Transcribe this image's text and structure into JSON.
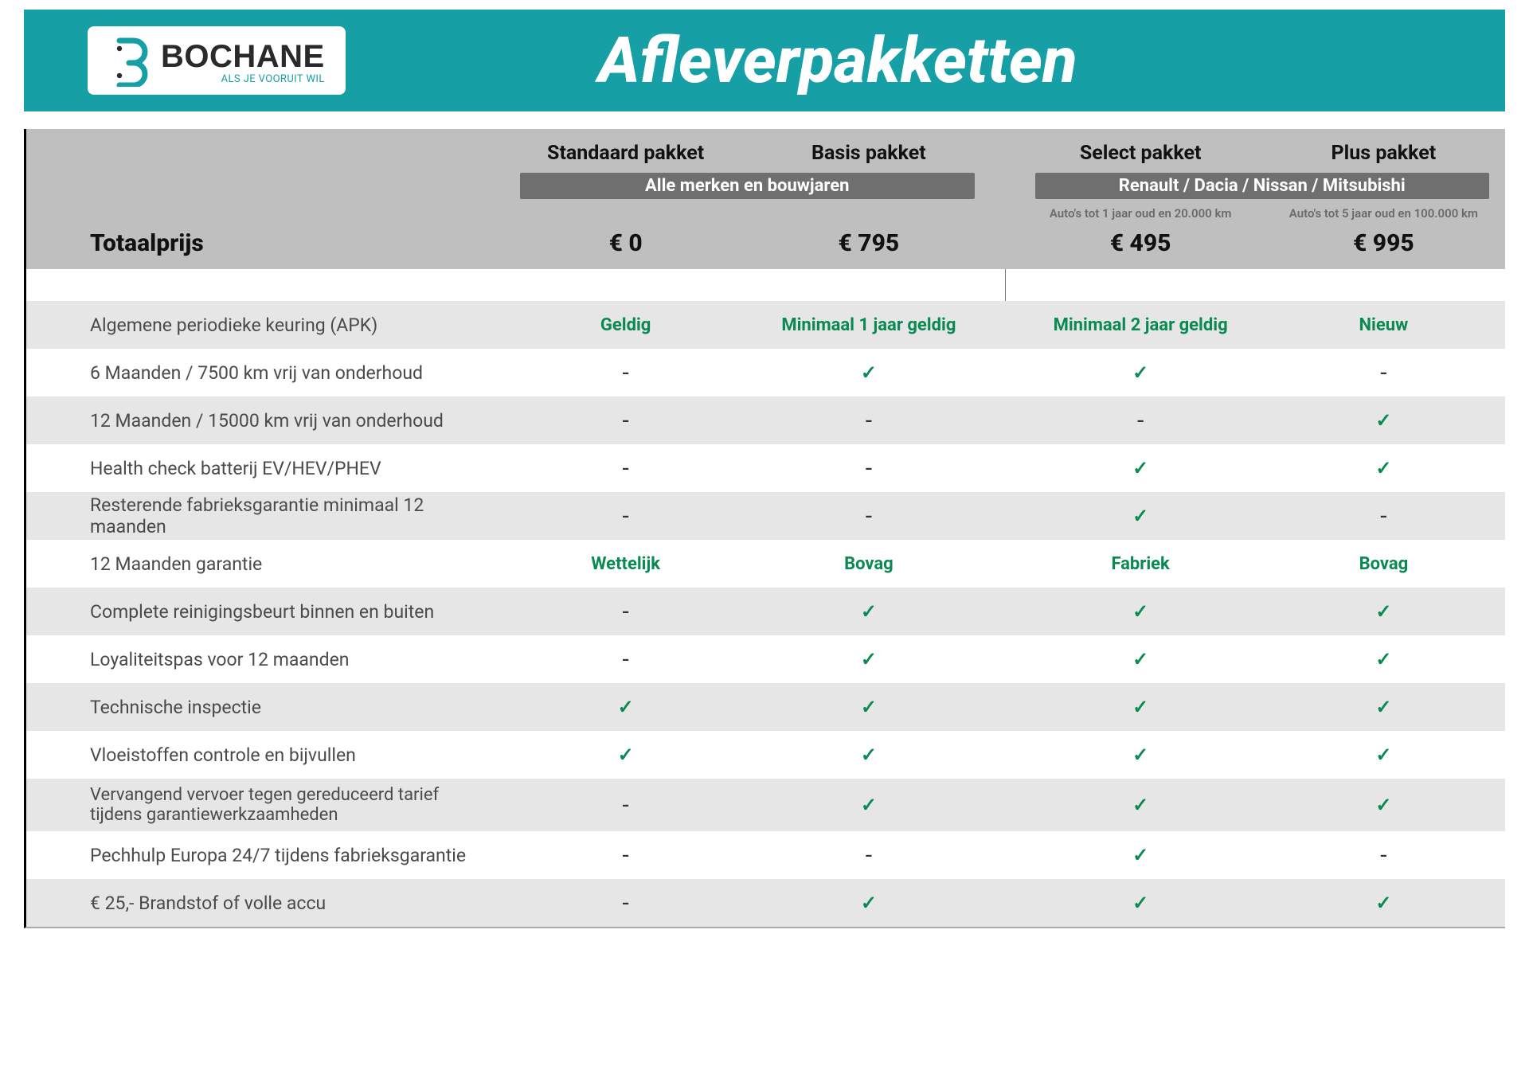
{
  "brand": {
    "name": "BOCHANE",
    "tagline": "ALS JE VOORUIT WIL",
    "accent_color": "#169fa5"
  },
  "page_title": "Afleverpakketten",
  "colors": {
    "banner_bg": "#169fa5",
    "header_bg": "#bfbfbf",
    "subband_bg": "#6f6f6f",
    "alt_row_bg": "#e6e6e6",
    "value_green": "#0a8a52",
    "text_dark": "#2a2a2a"
  },
  "table": {
    "total_label": "Totaalprijs",
    "groups": [
      {
        "sub_label": "Alle merken en bouwjaren",
        "columns": [
          {
            "title": "Standaard pakket",
            "note": "",
            "price": "€ 0"
          },
          {
            "title": "Basis pakket",
            "note": "",
            "price": "€ 795"
          }
        ]
      },
      {
        "sub_label": "Renault / Dacia / Nissan / Mitsubishi",
        "columns": [
          {
            "title": "Select pakket",
            "note": "Auto's tot 1 jaar oud en 20.000 km",
            "price": "€ 495"
          },
          {
            "title": "Plus pakket",
            "note": "Auto's tot 5 jaar oud en 100.000 km",
            "price": "€ 995"
          }
        ]
      }
    ],
    "rows": [
      {
        "label": "Algemene periodieke keuring (APK)",
        "cells": [
          {
            "t": "text",
            "v": "Geldig"
          },
          {
            "t": "text",
            "v": "Minimaal 1 jaar geldig"
          },
          {
            "t": "text",
            "v": "Minimaal 2 jaar geldig"
          },
          {
            "t": "text",
            "v": "Nieuw"
          }
        ],
        "alt": true
      },
      {
        "label": "6 Maanden / 7500 km vrij van onderhoud",
        "cells": [
          {
            "t": "dash"
          },
          {
            "t": "check"
          },
          {
            "t": "check"
          },
          {
            "t": "dash"
          }
        ],
        "alt": false
      },
      {
        "label": "12 Maanden / 15000 km vrij van onderhoud",
        "cells": [
          {
            "t": "dash"
          },
          {
            "t": "dash"
          },
          {
            "t": "dash"
          },
          {
            "t": "check"
          }
        ],
        "alt": true
      },
      {
        "label": "Health check batterij EV/HEV/PHEV",
        "cells": [
          {
            "t": "dash"
          },
          {
            "t": "dash"
          },
          {
            "t": "check"
          },
          {
            "t": "check"
          }
        ],
        "alt": false
      },
      {
        "label": "Resterende fabrieksgarantie minimaal 12 maanden",
        "cells": [
          {
            "t": "dash"
          },
          {
            "t": "dash"
          },
          {
            "t": "check"
          },
          {
            "t": "dash"
          }
        ],
        "alt": true
      },
      {
        "label": "12 Maanden  garantie",
        "cells": [
          {
            "t": "text",
            "v": "Wettelijk"
          },
          {
            "t": "text",
            "v": "Bovag"
          },
          {
            "t": "text",
            "v": "Fabriek"
          },
          {
            "t": "text",
            "v": "Bovag"
          }
        ],
        "alt": false
      },
      {
        "label": "Complete reinigingsbeurt binnen en buiten",
        "cells": [
          {
            "t": "dash"
          },
          {
            "t": "check"
          },
          {
            "t": "check"
          },
          {
            "t": "check"
          }
        ],
        "alt": true
      },
      {
        "label": "Loyaliteitspas voor 12 maanden",
        "cells": [
          {
            "t": "dash"
          },
          {
            "t": "check"
          },
          {
            "t": "check"
          },
          {
            "t": "check"
          }
        ],
        "alt": false
      },
      {
        "label": "Technische inspectie",
        "cells": [
          {
            "t": "check"
          },
          {
            "t": "check"
          },
          {
            "t": "check"
          },
          {
            "t": "check"
          }
        ],
        "alt": true
      },
      {
        "label": "Vloeistoffen controle en bijvullen",
        "cells": [
          {
            "t": "check"
          },
          {
            "t": "check"
          },
          {
            "t": "check"
          },
          {
            "t": "check"
          }
        ],
        "alt": false
      },
      {
        "label": "Vervangend vervoer tegen gereduceerd tarief\ntijdens garantiewerkzaamheden",
        "cells": [
          {
            "t": "dash"
          },
          {
            "t": "check"
          },
          {
            "t": "check"
          },
          {
            "t": "check"
          }
        ],
        "alt": true,
        "twoLine": true
      },
      {
        "label": "Pechhulp Europa 24/7 tijdens fabrieksgarantie",
        "cells": [
          {
            "t": "dash"
          },
          {
            "t": "dash"
          },
          {
            "t": "check"
          },
          {
            "t": "dash"
          }
        ],
        "alt": false
      },
      {
        "label": "€ 25,- Brandstof of  volle accu",
        "cells": [
          {
            "t": "dash"
          },
          {
            "t": "check"
          },
          {
            "t": "check"
          },
          {
            "t": "check"
          }
        ],
        "alt": true
      }
    ]
  }
}
